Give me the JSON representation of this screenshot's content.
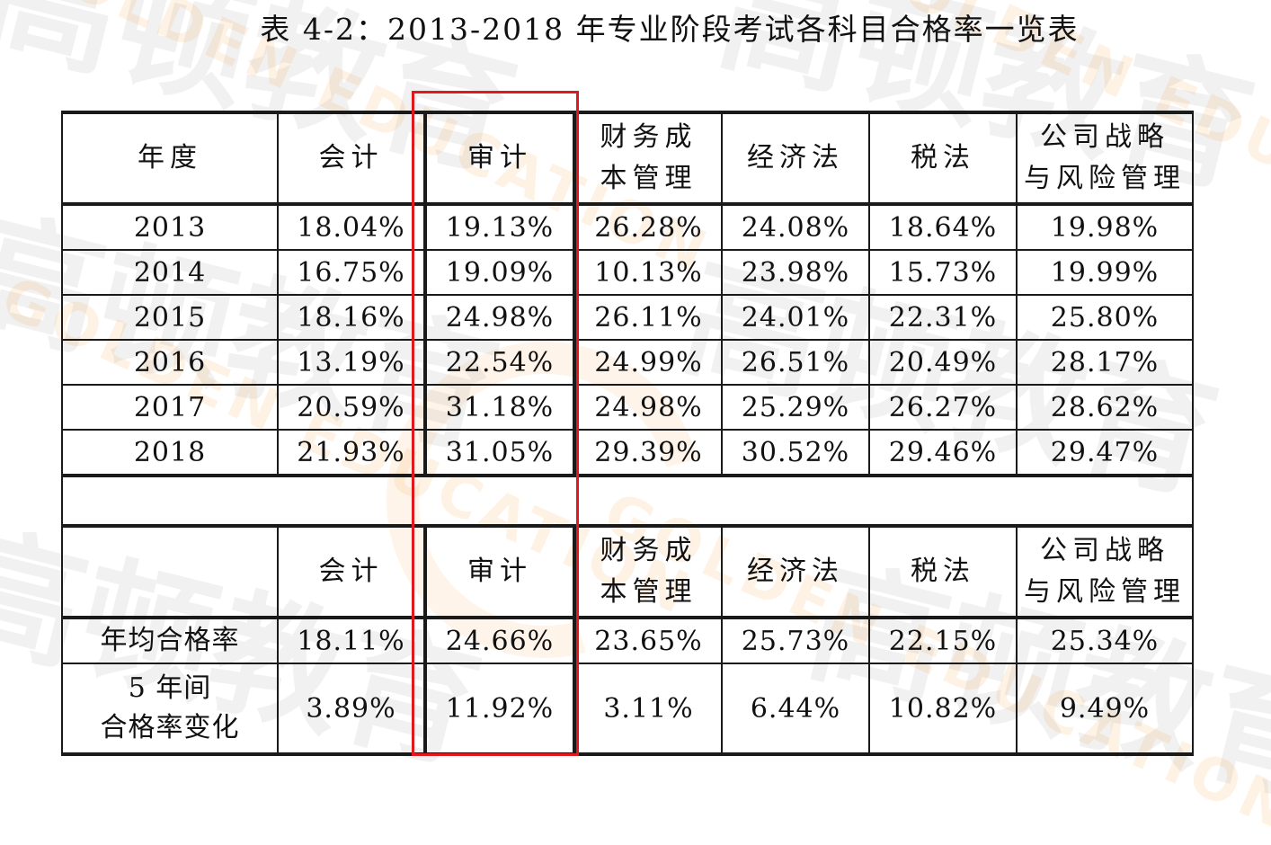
{
  "title": "表 4-2：2013-2018 年专业阶段考试各科目合格率一览表",
  "header": {
    "year": "年度",
    "subjects": [
      "会计",
      "审计",
      "财务成本管理",
      "经济法",
      "税法",
      "公司战略与风险管理"
    ],
    "subject_lines": [
      [
        "会计"
      ],
      [
        "审计"
      ],
      [
        "财务成",
        "本管理"
      ],
      [
        "经济法"
      ],
      [
        "税法"
      ],
      [
        "公司战略",
        "与风险管理"
      ]
    ]
  },
  "rows": [
    {
      "year": "2013",
      "values": [
        "18.04%",
        "19.13%",
        "26.28%",
        "24.08%",
        "18.64%",
        "19.98%"
      ]
    },
    {
      "year": "2014",
      "values": [
        "16.75%",
        "19.09%",
        "10.13%",
        "23.98%",
        "15.73%",
        "19.99%"
      ]
    },
    {
      "year": "2015",
      "values": [
        "18.16%",
        "24.98%",
        "26.11%",
        "24.01%",
        "22.31%",
        "25.80%"
      ]
    },
    {
      "year": "2016",
      "values": [
        "13.19%",
        "22.54%",
        "24.99%",
        "26.51%",
        "20.49%",
        "28.17%"
      ]
    },
    {
      "year": "2017",
      "values": [
        "20.59%",
        "31.18%",
        "24.98%",
        "25.29%",
        "26.27%",
        "28.62%"
      ]
    },
    {
      "year": "2018",
      "values": [
        "21.93%",
        "31.05%",
        "29.39%",
        "30.52%",
        "29.46%",
        "29.47%"
      ]
    }
  ],
  "summary": {
    "average_label": "年均合格率",
    "average": [
      "18.11%",
      "24.66%",
      "23.65%",
      "25.73%",
      "22.15%",
      "25.34%"
    ],
    "change_label_lines": [
      "5 年间",
      "合格率变化"
    ],
    "change": [
      "3.89%",
      "11.92%",
      "3.11%",
      "6.44%",
      "10.82%",
      "9.49%"
    ]
  },
  "highlight_color": "#e0191e",
  "watermark": {
    "cn": "高顿教育",
    "en": "GOLDEN EDUCATION"
  }
}
